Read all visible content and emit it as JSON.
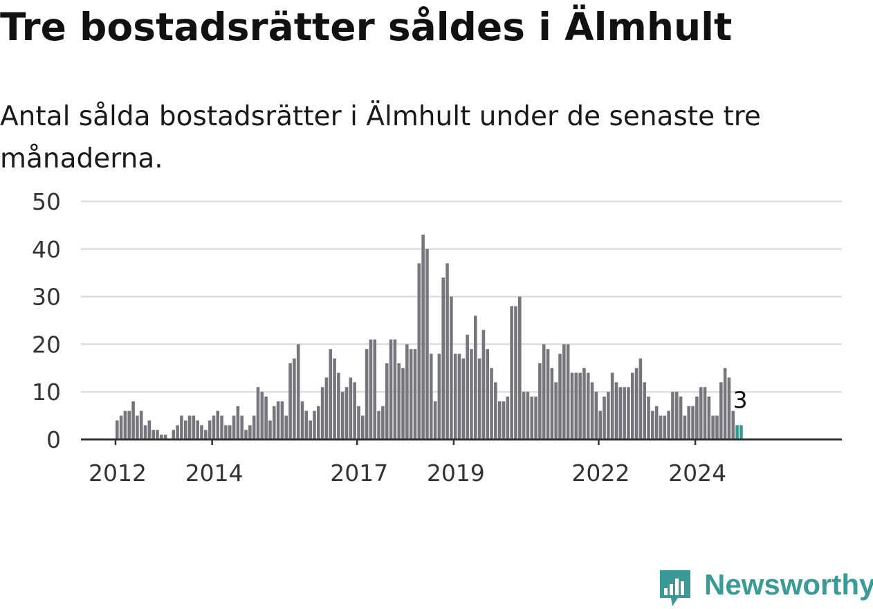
{
  "title": "Tre bostadsrätter såldes i Älmhult",
  "subtitle": "Antal sålda bostadsrätter i Älmhult under de senaste tre månaderna.",
  "logo": {
    "text": "Newsworthy",
    "icon": "newsworthy-chart-icon",
    "color": "#3a9a97"
  },
  "colors": {
    "bar": "#77767c",
    "highlight": "#2a9d99",
    "grid": "#dddddd",
    "axis": "#333333"
  },
  "chart_data": {
    "type": "bar",
    "x_unit": "month",
    "x_start": "2012-01",
    "x_end": "2025-01",
    "xticks": [
      "2012",
      "2014",
      "2017",
      "2019",
      "2022",
      "2024"
    ],
    "ylim": [
      0,
      50
    ],
    "yticks": [
      0,
      10,
      20,
      30,
      40,
      50
    ],
    "grid": true,
    "values": [
      4,
      5,
      6,
      6,
      8,
      5,
      6,
      3,
      4,
      2,
      2,
      1,
      1,
      0,
      2,
      3,
      5,
      4,
      5,
      5,
      4,
      3,
      2,
      4,
      5,
      6,
      5,
      3,
      3,
      5,
      7,
      5,
      2,
      3,
      5,
      11,
      10,
      9,
      4,
      7,
      8,
      8,
      5,
      16,
      17,
      20,
      8,
      6,
      4,
      6,
      7,
      11,
      13,
      19,
      17,
      14,
      10,
      11,
      13,
      12,
      7,
      5,
      19,
      21,
      21,
      6,
      7,
      16,
      21,
      21,
      16,
      15,
      20,
      19,
      19,
      37,
      43,
      40,
      18,
      8,
      18,
      34,
      37,
      30,
      18,
      18,
      17,
      22,
      19,
      26,
      17,
      23,
      19,
      15,
      12,
      8,
      8,
      9,
      28,
      28,
      30,
      10,
      10,
      9,
      9,
      16,
      20,
      19,
      15,
      12,
      18,
      20,
      20,
      14,
      14,
      14,
      15,
      14,
      12,
      10,
      6,
      9,
      10,
      14,
      12,
      11,
      11,
      11,
      14,
      15,
      17,
      12,
      9,
      6,
      7,
      5,
      5,
      6,
      10,
      10,
      9,
      5,
      7,
      7,
      9,
      11,
      11,
      9,
      5,
      5,
      12,
      15,
      13,
      6,
      3,
      3
    ],
    "highlight_last": 2,
    "last_label": "3"
  }
}
